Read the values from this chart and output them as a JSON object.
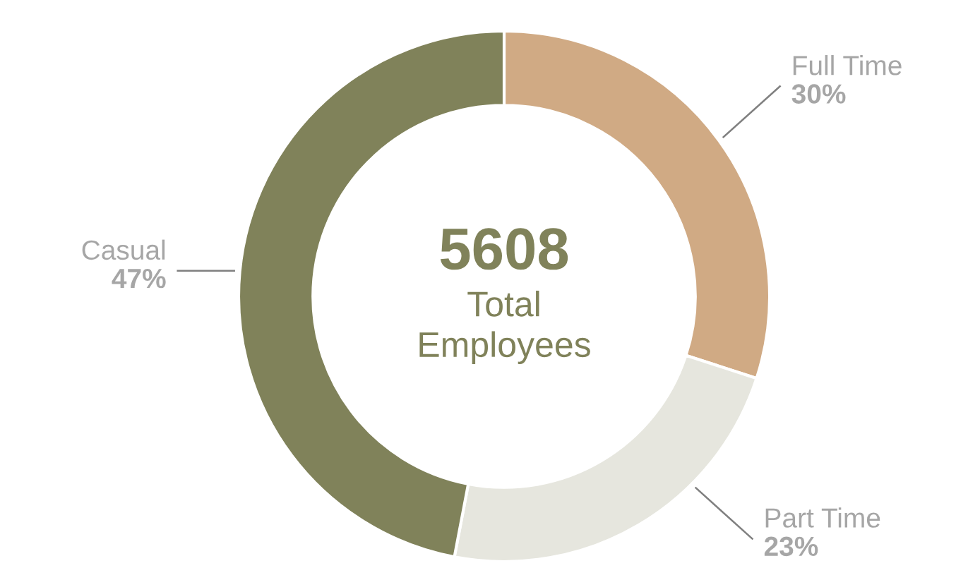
{
  "chart_data": {
    "type": "donut",
    "categories": [
      "Full Time",
      "Part Time",
      "Casual"
    ],
    "values": [
      30,
      23,
      47
    ],
    "colors": [
      "#d0aa84",
      "#e6e6de",
      "#80825a"
    ],
    "annotations": [
      "5608",
      "Total\nEmployees"
    ],
    "value_labels": [
      "30%",
      "23%",
      "47%"
    ],
    "legend": false
  }
}
